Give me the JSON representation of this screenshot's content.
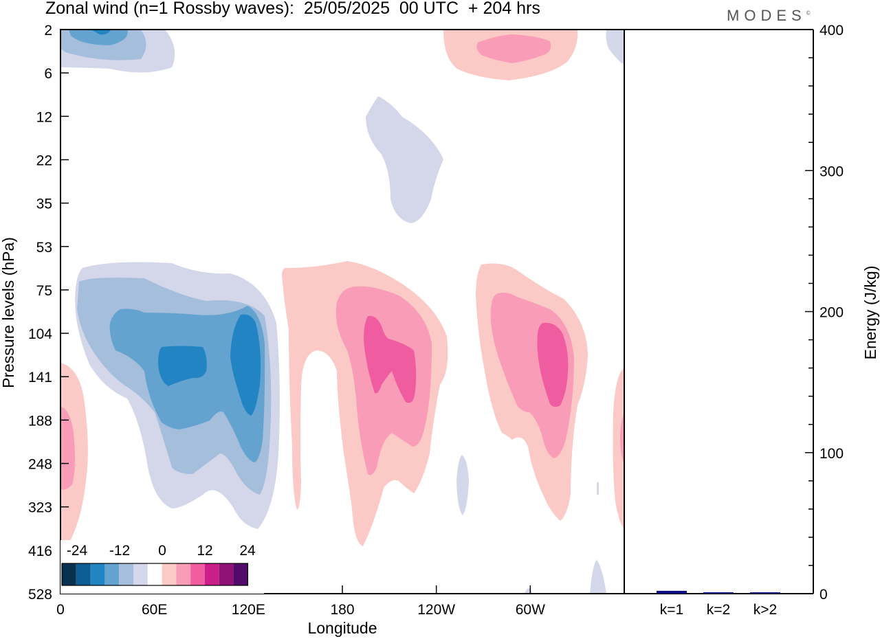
{
  "title": "Zonal wind (n=1 Rossby waves):  25/05/2025  00 UTC  + 204 hrs",
  "brand": "MODES",
  "chart_data": [
    {
      "type": "heatmap",
      "title": "Zonal wind (n=1 Rossby waves):  25/05/2025  00 UTC  + 204 hrs",
      "xlabel": "Longitude",
      "ylabel": "Pressure levels (hPa)",
      "x_ticks": [
        "0",
        "60E",
        "120E",
        "180",
        "120W",
        "60W"
      ],
      "x_tick_values": [
        0,
        60,
        120,
        180,
        240,
        300
      ],
      "xlim": [
        0,
        360
      ],
      "y_ticks": [
        "2",
        "6",
        "12",
        "22",
        "35",
        "53",
        "75",
        "104",
        "141",
        "188",
        "248",
        "323",
        "416",
        "528"
      ],
      "y_scale": "log-like (pressure levels evenly spaced)",
      "colorbar": {
        "tick_labels": [
          "-24",
          "-12",
          "0",
          "12",
          "24"
        ],
        "levels": [
          -30,
          -25,
          -20,
          -15,
          -10,
          -5,
          0,
          5,
          10,
          15,
          20,
          25,
          30
        ],
        "colors": [
          "#08304f",
          "#0b5d94",
          "#2384c4",
          "#64a3d0",
          "#a4bedc",
          "#d4d6e9",
          "#ffffff",
          "#fbcac6",
          "#f89cb7",
          "#ef5c9f",
          "#c81f88",
          "#901078",
          "#520a6b"
        ],
        "placement": "bottom-left"
      },
      "features": [
        {
          "sign": "negative",
          "lon_center": 25,
          "pressure": "2-6",
          "min_level": -20
        },
        {
          "sign": "negative",
          "lon_center": 85,
          "pressure": "60-320",
          "min_level": -25
        },
        {
          "sign": "negative",
          "lon_center": 200,
          "pressure": "8-40",
          "min_level": -5
        },
        {
          "sign": "positive",
          "lon_center": 5,
          "pressure": "150-400",
          "min_level": 10
        },
        {
          "sign": "positive",
          "lon_center": 200,
          "pressure": "60-400",
          "min_level": 20
        },
        {
          "sign": "positive",
          "lon_center": 300,
          "pressure": "60-320",
          "min_level": 20
        },
        {
          "sign": "positive",
          "lon_center": 285,
          "pressure": "2-6",
          "min_level": 10
        }
      ]
    },
    {
      "type": "bar",
      "categories": [
        "k=1",
        "k=2",
        "k>2"
      ],
      "values": [
        2,
        0.5,
        0.5
      ],
      "ylabel": "Energy (J/kg)",
      "ylim": [
        0,
        400
      ],
      "y_ticks": [
        0,
        100,
        200,
        300,
        400
      ],
      "bar_color": "#0a0a80"
    }
  ]
}
